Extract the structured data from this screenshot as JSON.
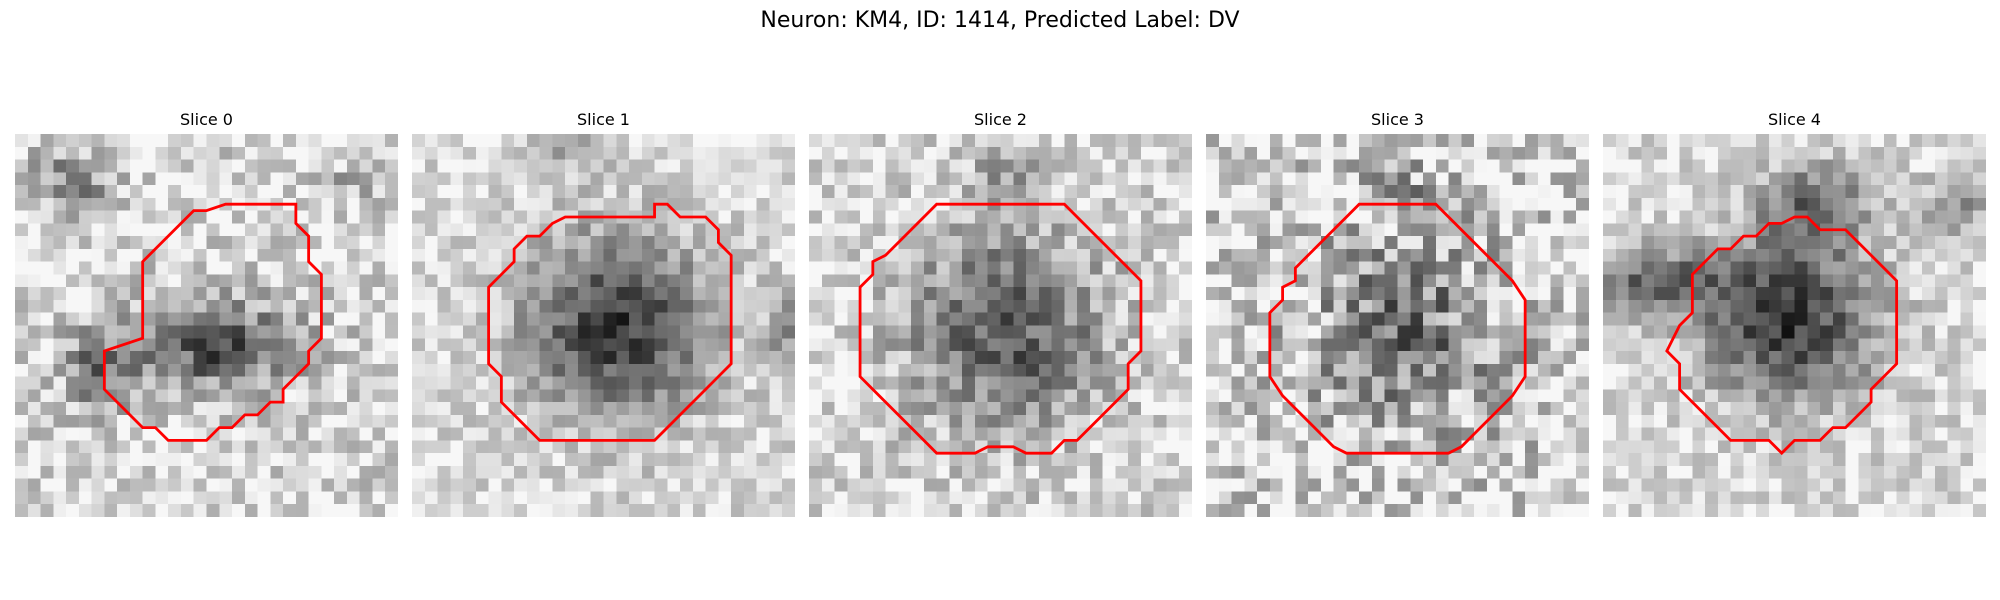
{
  "figure": {
    "title": "Neuron: KM4, ID: 1414, Predicted Label: DV"
  },
  "panels": [
    {
      "title": "Slice 0"
    },
    {
      "title": "Slice 1"
    },
    {
      "title": "Slice 2"
    },
    {
      "title": "Slice 3"
    },
    {
      "title": "Slice 4"
    }
  ],
  "colors": {
    "contour": "#ff0000"
  }
}
